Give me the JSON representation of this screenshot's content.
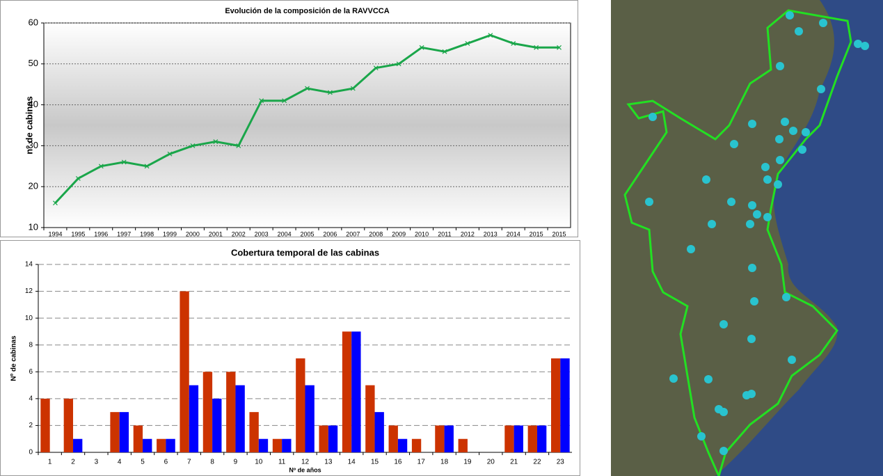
{
  "chart_data": [
    {
      "type": "line",
      "title": "Evolución de la composición de la RAVVCCA",
      "y_label": "nº de cabinas",
      "categories": [
        "1994",
        "1995",
        "1996",
        "1997",
        "1998",
        "1999",
        "2000",
        "2001",
        "2002",
        "2003",
        "2004",
        "2005",
        "2006",
        "2007",
        "2008",
        "2009",
        "2010",
        "2011",
        "2012",
        "2013",
        "2014",
        "2015",
        "2015"
      ],
      "values": [
        16,
        22,
        25,
        26,
        25,
        28,
        30,
        31,
        30,
        41,
        41,
        44,
        43,
        44,
        49,
        50,
        54,
        53,
        55,
        57,
        55,
        54,
        54
      ],
      "color": "#1aa64a",
      "ylim": [
        10,
        60
      ],
      "yticks": [
        10,
        20,
        30,
        40,
        50,
        60
      ],
      "grid": true
    },
    {
      "type": "bar",
      "title": "Cobertura temporal de las cabinas",
      "y_label": "Nº de cabinas",
      "x_label": "Nº de años",
      "categories": [
        "1",
        "2",
        "3",
        "4",
        "5",
        "6",
        "7",
        "8",
        "9",
        "10",
        "11",
        "12",
        "13",
        "14",
        "15",
        "16",
        "17",
        "18",
        "19",
        "20",
        "21",
        "22",
        "23"
      ],
      "series": [
        {
          "color": "#cc3300",
          "values": [
            4,
            4,
            0,
            3,
            2,
            1,
            12,
            6,
            6,
            3,
            1,
            7,
            2,
            9,
            5,
            2,
            1,
            2,
            1,
            0,
            2,
            2,
            7
          ]
        },
        {
          "color": "#0000ff",
          "values": [
            0,
            1,
            0,
            3,
            1,
            1,
            5,
            4,
            5,
            1,
            1,
            5,
            2,
            9,
            3,
            1,
            0,
            2,
            0,
            0,
            2,
            2,
            7
          ]
        }
      ],
      "ylim": [
        0,
        14
      ],
      "yticks": [
        0,
        2,
        4,
        6,
        8,
        10,
        12,
        14
      ],
      "grid": true
    }
  ]
}
